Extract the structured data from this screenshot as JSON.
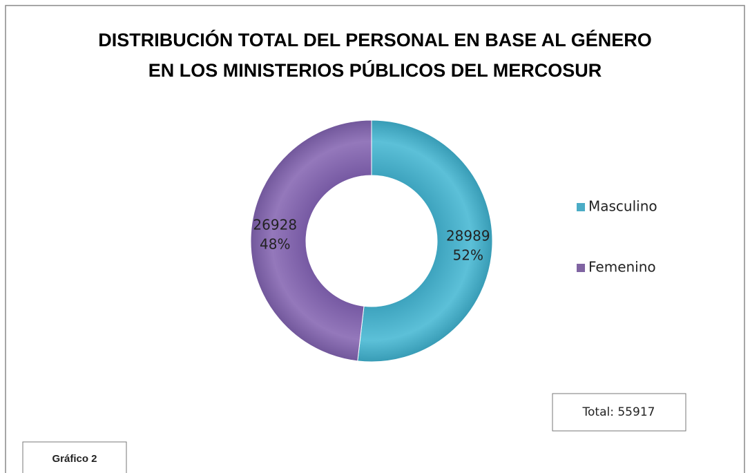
{
  "chart_data": {
    "type": "donut",
    "title": "DISTRIBUCIÓN TOTAL DEL PERSONAL EN BASE AL GÉNERO\nEN LOS MINISTERIOS PÚBLICOS DEL MERCOSUR",
    "series": [
      {
        "name": "Masculino",
        "color": "#4bacc6",
        "values": [
          28989
        ],
        "percent_labels": [
          "52%"
        ]
      },
      {
        "name": "Femenino",
        "color": "#8064a2",
        "values": [
          26928
        ],
        "percent_labels": [
          "48%"
        ]
      }
    ],
    "total_label": "Total: 55917",
    "caption": "Gráfico 2"
  }
}
